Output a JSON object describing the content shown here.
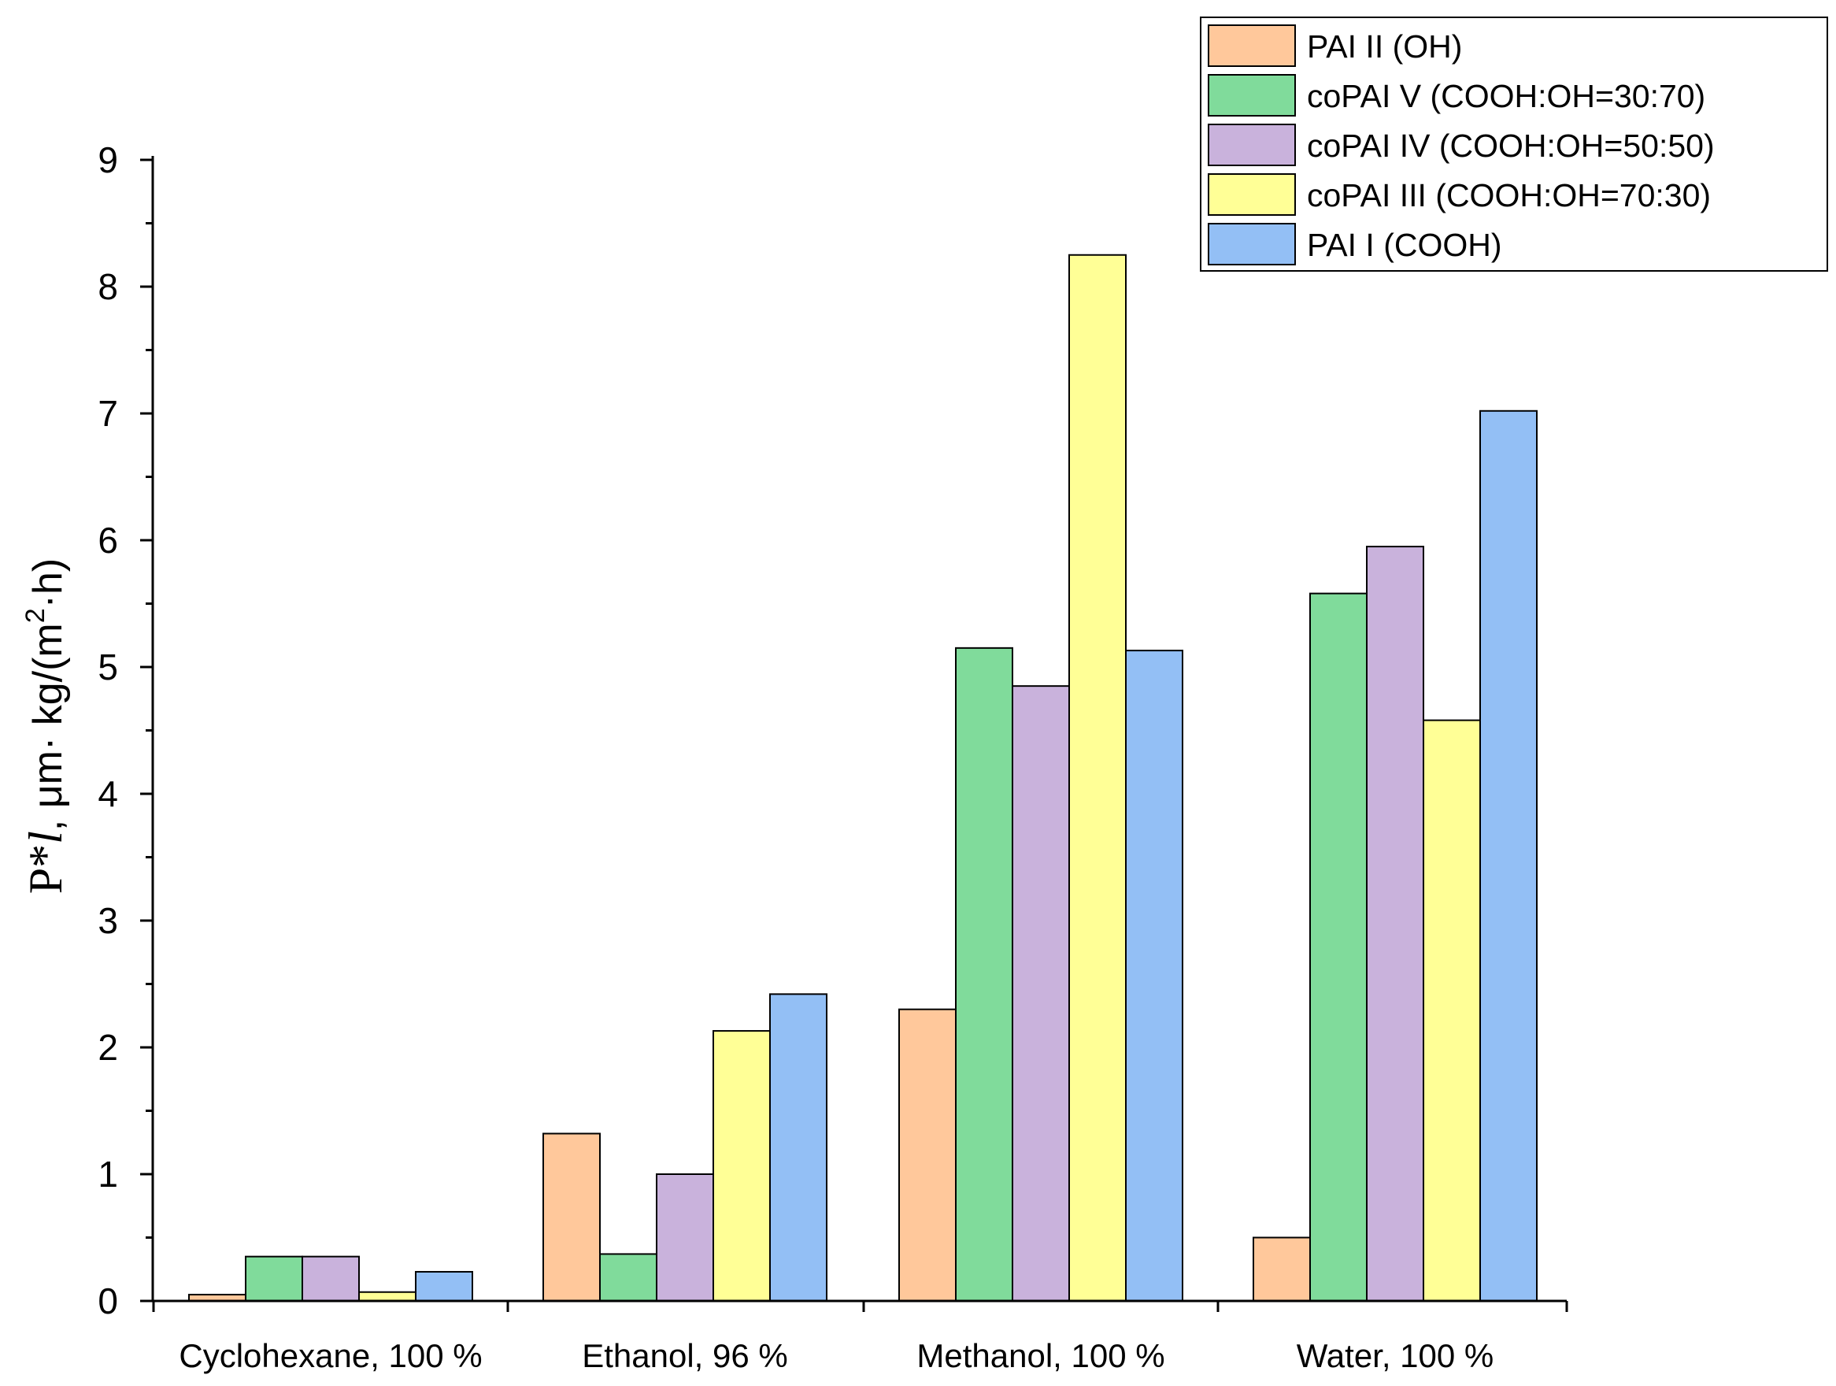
{
  "chart_data": {
    "type": "bar",
    "title": "",
    "xlabel": "",
    "ylabel": {
      "prefix": "P*",
      "italic": "l",
      "suffix": ",  μm· kg/(m",
      "sup": "2",
      "tail": "·h)"
    },
    "ylim": [
      0,
      9
    ],
    "yticks": [
      "0",
      "1",
      "2",
      "3",
      "4",
      "5",
      "6",
      "7",
      "8",
      "9"
    ],
    "categories": [
      "Cyclohexane, 100 %",
      "Ethanol, 96 %",
      "Methanol, 100 %",
      "Water, 100 %"
    ],
    "series": [
      {
        "name": "PAI II (OH)",
        "color": "#ffc89b",
        "values": [
          0.05,
          1.32,
          2.3,
          0.5
        ]
      },
      {
        "name": "coPAI V (COOH:OH=30:70)",
        "color": "#80db9b",
        "values": [
          0.35,
          0.37,
          5.15,
          5.58
        ]
      },
      {
        "name": "coPAI IV (COOH:OH=50:50)",
        "color": "#c9b2dc",
        "values": [
          0.35,
          1.0,
          4.85,
          5.95
        ]
      },
      {
        "name": "coPAI III (COOH:OH=70:30)",
        "color": "#ffff96",
        "values": [
          0.07,
          2.13,
          8.25,
          4.58
        ]
      },
      {
        "name": "PAI I (COOH)",
        "color": "#93bff5",
        "values": [
          0.23,
          2.42,
          5.13,
          7.02
        ]
      }
    ],
    "legend_position": "top-right",
    "grid": false
  }
}
